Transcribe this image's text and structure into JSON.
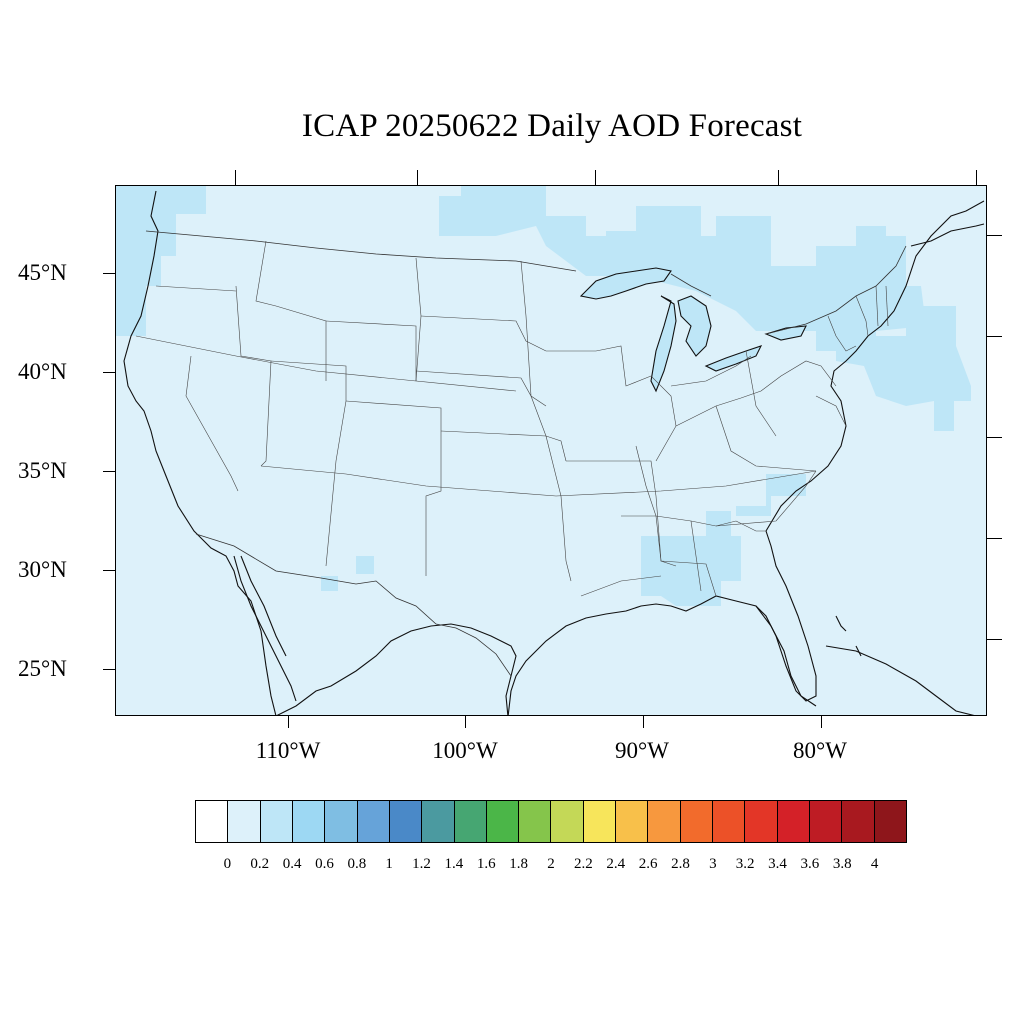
{
  "title": "ICAP 20250622 Daily AOD Forecast",
  "lat_labels": [
    "45°N",
    "40°N",
    "35°N",
    "30°N",
    "25°N"
  ],
  "lon_labels": [
    "110°W",
    "100°W",
    "90°W",
    "80°W"
  ],
  "colorbar": {
    "colors": [
      "#ffffff",
      "#ddf1fa",
      "#bee6f7",
      "#9dd8f3",
      "#7fbee3",
      "#66a3d9",
      "#4a89c8",
      "#4b9aa0",
      "#46a672",
      "#4bb648",
      "#85c54b",
      "#c4d857",
      "#f7e55b",
      "#f8c04a",
      "#f7983e",
      "#f26b2c",
      "#ec5128",
      "#e33627",
      "#d42128",
      "#be1c24",
      "#a8191f",
      "#8e161b"
    ],
    "labels": [
      "0",
      "0.2",
      "0.4",
      "0.6",
      "0.8",
      "1",
      "1.2",
      "1.4",
      "1.6",
      "1.8",
      "2",
      "2.2",
      "2.4",
      "2.6",
      "2.8",
      "3",
      "3.2",
      "3.4",
      "3.6",
      "3.8",
      "4"
    ]
  },
  "map": {
    "extent": {
      "lon_min": -119,
      "lon_max": -70,
      "lat_min": 22.5,
      "lat_max": 49.2
    },
    "ocean_and_background_level": "0-0.2",
    "elevated_regions_level": "0.2-0.4"
  }
}
